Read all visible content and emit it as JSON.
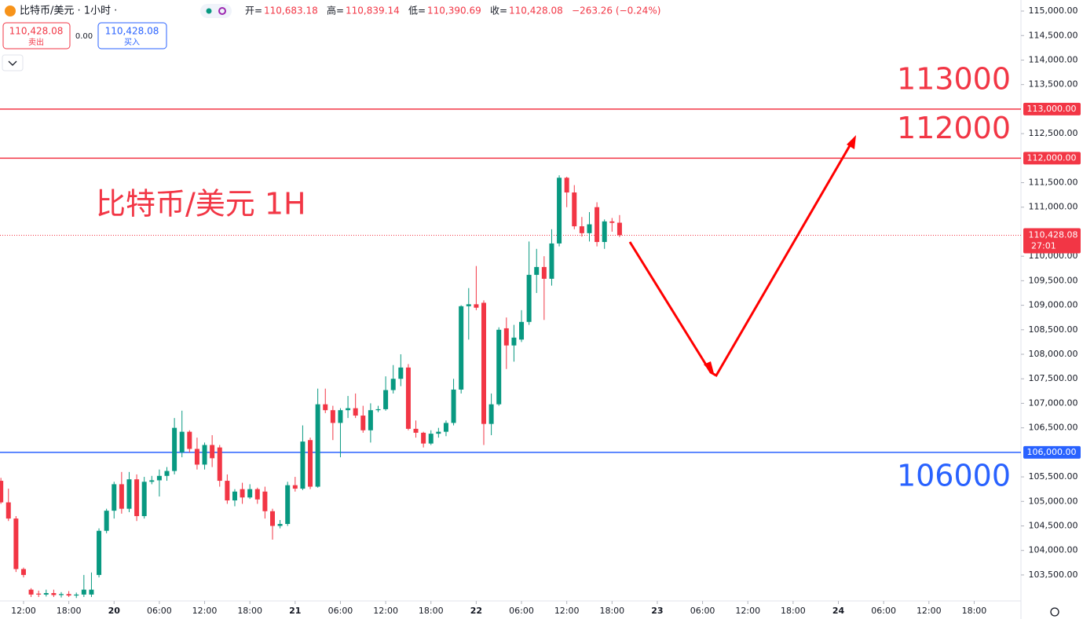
{
  "header": {
    "symbol": "比特币/美元 · 1小时 ·",
    "ohlc": [
      {
        "label": "开=",
        "value": "110,683.18"
      },
      {
        "label": "高=",
        "value": "110,839.14"
      },
      {
        "label": "低=",
        "value": "110,390.69"
      },
      {
        "label": "收=",
        "value": "110,428.08"
      }
    ],
    "change": "−263.26 (−0.24%)",
    "sell": {
      "price": "110,428.08",
      "label": "卖出"
    },
    "spread": "0.00",
    "buy": {
      "price": "110,428.08",
      "label": "买入"
    }
  },
  "chart_data": {
    "type": "candlestick",
    "title": "比特币/美元 1H",
    "up_color": "#089981",
    "down_color": "#f23645",
    "x": [
      9,
      10,
      11,
      12,
      13,
      14,
      15,
      16,
      17,
      18,
      19,
      20,
      21,
      22,
      23,
      24,
      25,
      26,
      27,
      28,
      29,
      30,
      31,
      32,
      33,
      34,
      35,
      36,
      37,
      38,
      39,
      40,
      41,
      42,
      43,
      44,
      45,
      46,
      47,
      48,
      49,
      50,
      51,
      52,
      53,
      54,
      55,
      56,
      57,
      58,
      59,
      60,
      61,
      62,
      63,
      64,
      65,
      66,
      67,
      68,
      69,
      70,
      71,
      72,
      73,
      74,
      75,
      76,
      77,
      78,
      79,
      80,
      81,
      82,
      83,
      84,
      85,
      86,
      87,
      88,
      89,
      90,
      91
    ],
    "open": [
      105420,
      104980,
      104650,
      103620,
      103200,
      103120,
      103100,
      103130,
      103090,
      103110,
      103080,
      103100,
      103100,
      103500,
      104400,
      104810,
      105350,
      104850,
      105450,
      104700,
      105400,
      105430,
      105520,
      105620,
      106000,
      106420,
      106070,
      105750,
      106150,
      106100,
      105420,
      105020,
      105250,
      105080,
      105250,
      105200,
      104800,
      104500,
      104540,
      105330,
      105260,
      106250,
      105300,
      106980,
      106860,
      106600,
      106860,
      106900,
      106750,
      106450,
      106860,
      106880,
      107270,
      107500,
      107730,
      106480,
      106400,
      106180,
      106380,
      106420,
      106600,
      107280,
      108980,
      109020,
      109050,
      106580,
      106980,
      108530,
      108180,
      108300,
      108660,
      109620,
      109780,
      109540,
      110260,
      111600,
      111300,
      110610,
      110470,
      111000,
      110290,
      110710,
      110683.18
    ],
    "high": [
      105480,
      105260,
      104700,
      103650,
      103230,
      103180,
      103200,
      103200,
      103150,
      103170,
      103140,
      103500,
      103550,
      104450,
      104850,
      105400,
      105600,
      105600,
      105550,
      105500,
      105520,
      105650,
      105700,
      106700,
      106850,
      106450,
      106300,
      106200,
      106350,
      106150,
      105550,
      105250,
      105380,
      105350,
      105280,
      105300,
      104850,
      104620,
      105400,
      105500,
      106550,
      106300,
      107300,
      107300,
      106950,
      106900,
      107150,
      107200,
      106950,
      107000,
      106950,
      107550,
      107780,
      108000,
      107800,
      106650,
      106420,
      106450,
      106500,
      106650,
      107500,
      109000,
      109350,
      109800,
      109100,
      107200,
      108550,
      108750,
      108600,
      108900,
      110300,
      110150,
      110000,
      110550,
      111650,
      111620,
      111450,
      110800,
      110900,
      111100,
      110750,
      110780,
      110839.14
    ],
    "low": [
      104950,
      104600,
      103560,
      103450,
      103050,
      103050,
      103060,
      103050,
      103040,
      103050,
      103030,
      103050,
      103050,
      103450,
      104350,
      104650,
      104750,
      104780,
      104600,
      104650,
      105350,
      105100,
      105420,
      105550,
      105900,
      106000,
      105650,
      105650,
      105700,
      105300,
      104950,
      104900,
      104950,
      105050,
      104950,
      104650,
      104220,
      104450,
      104500,
      105200,
      105230,
      105250,
      105280,
      106800,
      106250,
      105900,
      106700,
      106700,
      106400,
      106200,
      106820,
      106850,
      107200,
      107350,
      106450,
      106300,
      106100,
      106150,
      106300,
      106330,
      106550,
      107200,
      108300,
      108900,
      106150,
      106350,
      106950,
      107700,
      107850,
      108250,
      108600,
      109250,
      108700,
      109400,
      110200,
      111000,
      110550,
      110400,
      110300,
      110200,
      110150,
      110500,
      110390.69
    ],
    "close": [
      104980,
      104650,
      103620,
      103500,
      103100,
      103100,
      103130,
      103090,
      103110,
      103080,
      103100,
      103200,
      103200,
      104400,
      104810,
      105350,
      104850,
      105450,
      104700,
      105400,
      105430,
      105520,
      105620,
      106500,
      106420,
      106070,
      105750,
      106150,
      105880,
      105420,
      105020,
      105200,
      105080,
      105250,
      105040,
      104800,
      104500,
      104540,
      105330,
      105260,
      106220,
      105300,
      106980,
      106860,
      106600,
      106860,
      106900,
      106750,
      106450,
      106860,
      106880,
      107270,
      107500,
      107730,
      106480,
      106400,
      106180,
      106380,
      106420,
      106600,
      107280,
      108980,
      109020,
      108950,
      106580,
      106980,
      108500,
      108180,
      108340,
      108660,
      109620,
      109780,
      109540,
      110260,
      111600,
      111300,
      110610,
      110470,
      110650,
      110290,
      110710,
      110680,
      110428.08
    ],
    "xlim": [
      8.88,
      144.2
    ],
    "xticks": [
      {
        "value": 12,
        "label": "12:00"
      },
      {
        "value": 18,
        "label": "18:00"
      },
      {
        "value": 24,
        "label": "20"
      },
      {
        "value": 30,
        "label": "06:00"
      },
      {
        "value": 36,
        "label": "12:00"
      },
      {
        "value": 42,
        "label": "18:00"
      },
      {
        "value": 48,
        "label": "21"
      },
      {
        "value": 54,
        "label": "06:00"
      },
      {
        "value": 60,
        "label": "12:00"
      },
      {
        "value": 66,
        "label": "18:00"
      },
      {
        "value": 72,
        "label": "22"
      },
      {
        "value": 78,
        "label": "06:00"
      },
      {
        "value": 84,
        "label": "12:00"
      },
      {
        "value": 90,
        "label": "18:00"
      },
      {
        "value": 96,
        "label": "23"
      },
      {
        "value": 102,
        "label": "06:00"
      },
      {
        "value": 108,
        "label": "12:00"
      },
      {
        "value": 114,
        "label": "18:00"
      },
      {
        "value": 120,
        "label": "24"
      },
      {
        "value": 126,
        "label": "06:00"
      },
      {
        "value": 132,
        "label": "12:00"
      },
      {
        "value": 138,
        "label": "18:00"
      }
    ],
    "ylim": [
      102970,
      115225
    ],
    "yticks": [
      {
        "value": 103500,
        "label": "103,500.00"
      },
      {
        "value": 104000,
        "label": "104,000.00"
      },
      {
        "value": 104500,
        "label": "104,500.00"
      },
      {
        "value": 105000,
        "label": "105,000.00"
      },
      {
        "value": 105500,
        "label": "105,500.00"
      },
      {
        "value": 106500,
        "label": "106,500.00"
      },
      {
        "value": 107000,
        "label": "107,000.00"
      },
      {
        "value": 107500,
        "label": "107,500.00"
      },
      {
        "value": 108000,
        "label": "108,000.00"
      },
      {
        "value": 108500,
        "label": "108,500.00"
      },
      {
        "value": 109000,
        "label": "109,000.00"
      },
      {
        "value": 109500,
        "label": "109,500.00"
      },
      {
        "value": 110000,
        "label": "110,000.00"
      },
      {
        "value": 111000,
        "label": "111,000.00"
      },
      {
        "value": 111500,
        "label": "111,500.00"
      },
      {
        "value": 112500,
        "label": "112,500.00"
      },
      {
        "value": 113500,
        "label": "113,500.00"
      },
      {
        "value": 114000,
        "label": "114,000.00"
      },
      {
        "value": 114500,
        "label": "114,500.00"
      },
      {
        "value": 115000,
        "label": "115,000.00"
      }
    ],
    "levels": [
      {
        "value": 113000,
        "label": "113,000.00",
        "annotation": "113000",
        "color": "#f23645"
      },
      {
        "value": 112000,
        "label": "112,000.00",
        "annotation": "112000",
        "color": "#f23645"
      },
      {
        "value": 106000,
        "label": "106,000.00",
        "annotation": "106000",
        "color": "#2962ff"
      }
    ],
    "last_price": {
      "value": 110428.08,
      "label": "110,428.08",
      "countdown": "27:01",
      "color": "#f23645"
    }
  }
}
